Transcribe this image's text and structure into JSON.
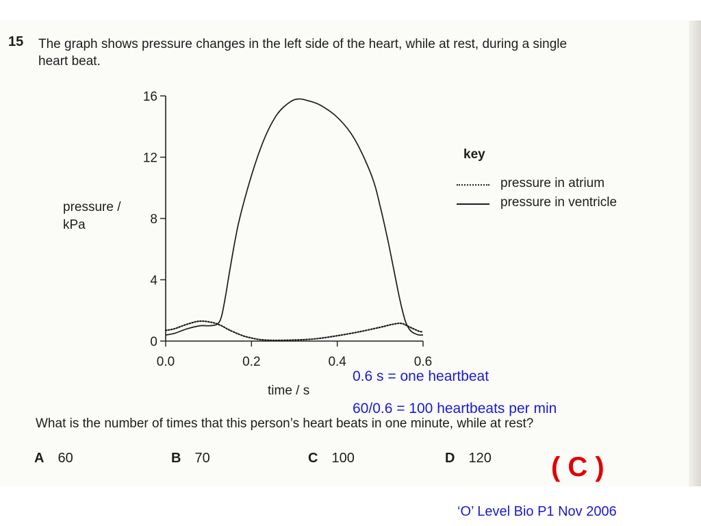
{
  "question": {
    "number": "15",
    "text_line1": "The graph shows pressure changes in the left side of the heart, while at rest, during a single",
    "text_line2": "heart beat.",
    "prompt": "What is the number of times that this person’s heart beats in one minute, while at rest?",
    "options": [
      {
        "letter": "A",
        "value": "60"
      },
      {
        "letter": "B",
        "value": "70"
      },
      {
        "letter": "C",
        "value": "100"
      },
      {
        "letter": "D",
        "value": "120"
      }
    ]
  },
  "annotations": {
    "line1": "0.6 s = one heartbeat",
    "line2": "60/0.6 = 100 heartbeats per min",
    "answer": "( C )",
    "source": "‘O’ Level Bio P1 Nov 2006"
  },
  "colors": {
    "annotation": "#1a1ad0",
    "answer": "#e10000",
    "ink": "#1c1c1c"
  },
  "chart_data": {
    "type": "line",
    "title": "",
    "xlabel": "time / s",
    "ylabel_line1": "pressure /",
    "ylabel_line2": "kPa",
    "xlim": [
      0,
      0.6
    ],
    "ylim": [
      0,
      16
    ],
    "xticks": [
      "0.0",
      "0.2",
      "0.4",
      "0.6"
    ],
    "yticks": [
      "16",
      "12",
      "8",
      "4",
      "0"
    ],
    "grid": false,
    "legend": {
      "title": "key",
      "placement": "right",
      "entries": [
        {
          "label": "pressure in atrium",
          "style": "dotted"
        },
        {
          "label": "pressure in ventricle",
          "style": "solid"
        }
      ]
    },
    "series": [
      {
        "name": "pressure in atrium",
        "style": "dotted",
        "x": [
          0,
          0.02,
          0.05,
          0.08,
          0.11,
          0.13,
          0.15,
          0.18,
          0.2,
          0.22,
          0.25,
          0.3,
          0.35,
          0.4,
          0.45,
          0.5,
          0.53,
          0.55,
          0.57,
          0.59,
          0.6
        ],
        "y": [
          0.7,
          0.8,
          1.1,
          1.3,
          1.2,
          1.0,
          0.7,
          0.35,
          0.2,
          0.1,
          0.05,
          0.07,
          0.15,
          0.35,
          0.6,
          0.9,
          1.1,
          1.15,
          0.9,
          0.65,
          0.6
        ]
      },
      {
        "name": "pressure in ventricle",
        "style": "solid",
        "x": [
          0,
          0.02,
          0.05,
          0.08,
          0.1,
          0.12,
          0.13,
          0.14,
          0.15,
          0.17,
          0.2,
          0.23,
          0.26,
          0.29,
          0.31,
          0.33,
          0.36,
          0.4,
          0.44,
          0.48,
          0.5,
          0.52,
          0.54,
          0.55,
          0.56,
          0.57,
          0.58,
          0.59,
          0.6
        ],
        "y": [
          0.4,
          0.5,
          0.8,
          1.0,
          1.0,
          1.1,
          1.6,
          3.0,
          4.7,
          7.7,
          10.8,
          13.2,
          14.8,
          15.6,
          15.8,
          15.7,
          15.4,
          14.6,
          13.2,
          10.8,
          8.8,
          6.3,
          3.5,
          2.2,
          1.2,
          0.7,
          0.5,
          0.4,
          0.4
        ]
      }
    ]
  }
}
